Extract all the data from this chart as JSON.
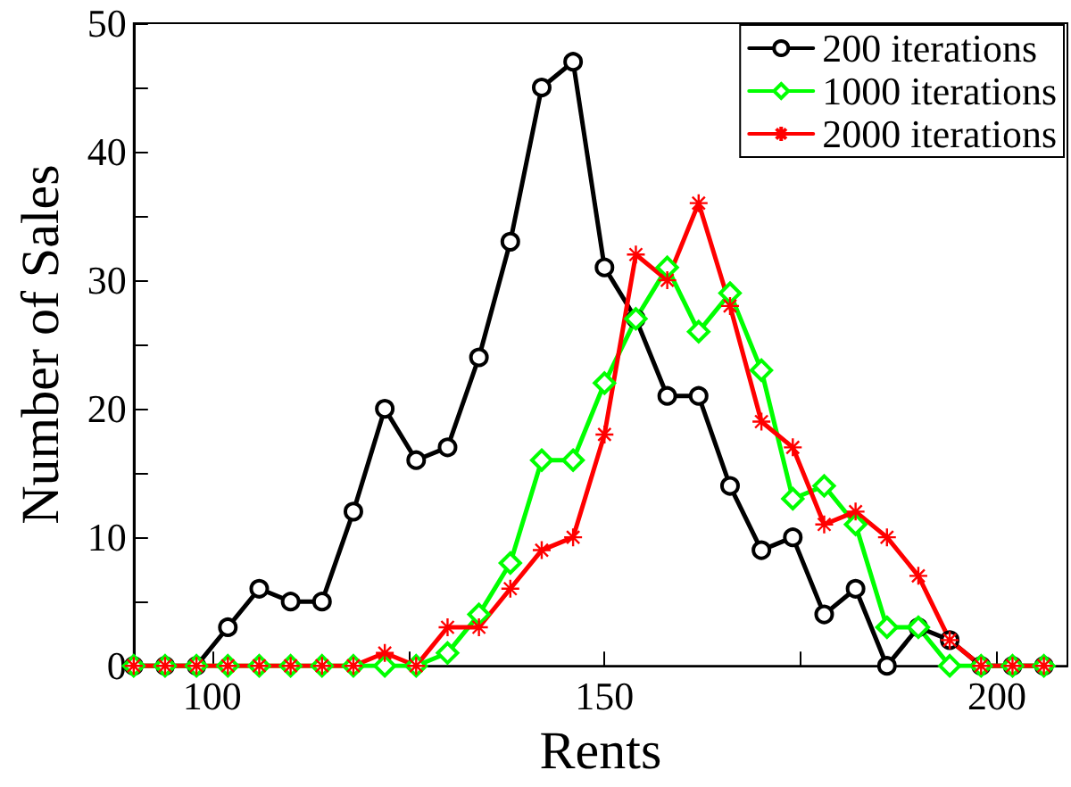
{
  "chart_data": {
    "type": "line",
    "xlabel": "Rents",
    "ylabel": "Number of Sales",
    "x": [
      90,
      94,
      98,
      102,
      106,
      110,
      114,
      118,
      122,
      126,
      130,
      134,
      138,
      142,
      146,
      150,
      154,
      158,
      162,
      166,
      170,
      174,
      178,
      182,
      186,
      190,
      194,
      198,
      202,
      206
    ],
    "series": [
      {
        "name": "200 iterations",
        "color": "#000000",
        "marker": "circle",
        "values": [
          0,
          0,
          0,
          3,
          6,
          5,
          5,
          12,
          20,
          16,
          17,
          24,
          33,
          45,
          47,
          31,
          27,
          21,
          21,
          14,
          9,
          10,
          4,
          6,
          0,
          3,
          2,
          0,
          0,
          0
        ]
      },
      {
        "name": "1000 iterations",
        "color": "#00ff00",
        "marker": "diamond",
        "values": [
          0,
          0,
          0,
          0,
          0,
          0,
          0,
          0,
          0,
          0,
          1,
          4,
          8,
          16,
          16,
          22,
          27,
          31,
          26,
          29,
          23,
          13,
          14,
          11,
          3,
          3,
          0,
          0,
          0,
          0
        ]
      },
      {
        "name": "2000 iterations",
        "color": "#ff0000",
        "marker": "cross",
        "values": [
          0,
          0,
          0,
          0,
          0,
          0,
          0,
          0,
          1,
          0,
          3,
          3,
          6,
          9,
          10,
          18,
          32,
          30,
          36,
          28,
          19,
          17,
          11,
          12,
          10,
          7,
          2,
          0,
          0,
          0
        ]
      }
    ],
    "xlim": [
      90,
      209
    ],
    "xticks": [
      100,
      {
        "value": 125,
        "label": null
      },
      150,
      {
        "value": 175,
        "label": null
      },
      200
    ],
    "ylim": [
      0,
      50
    ],
    "yticks": [
      0,
      {
        "value": 5,
        "label": null
      },
      10,
      {
        "value": 15,
        "label": null
      },
      20,
      {
        "value": 25,
        "label": null
      },
      30,
      {
        "value": 35,
        "label": null
      },
      40,
      {
        "value": 45,
        "label": null
      },
      50
    ],
    "grid": false,
    "legend": "top right",
    "line_style": "solid"
  }
}
